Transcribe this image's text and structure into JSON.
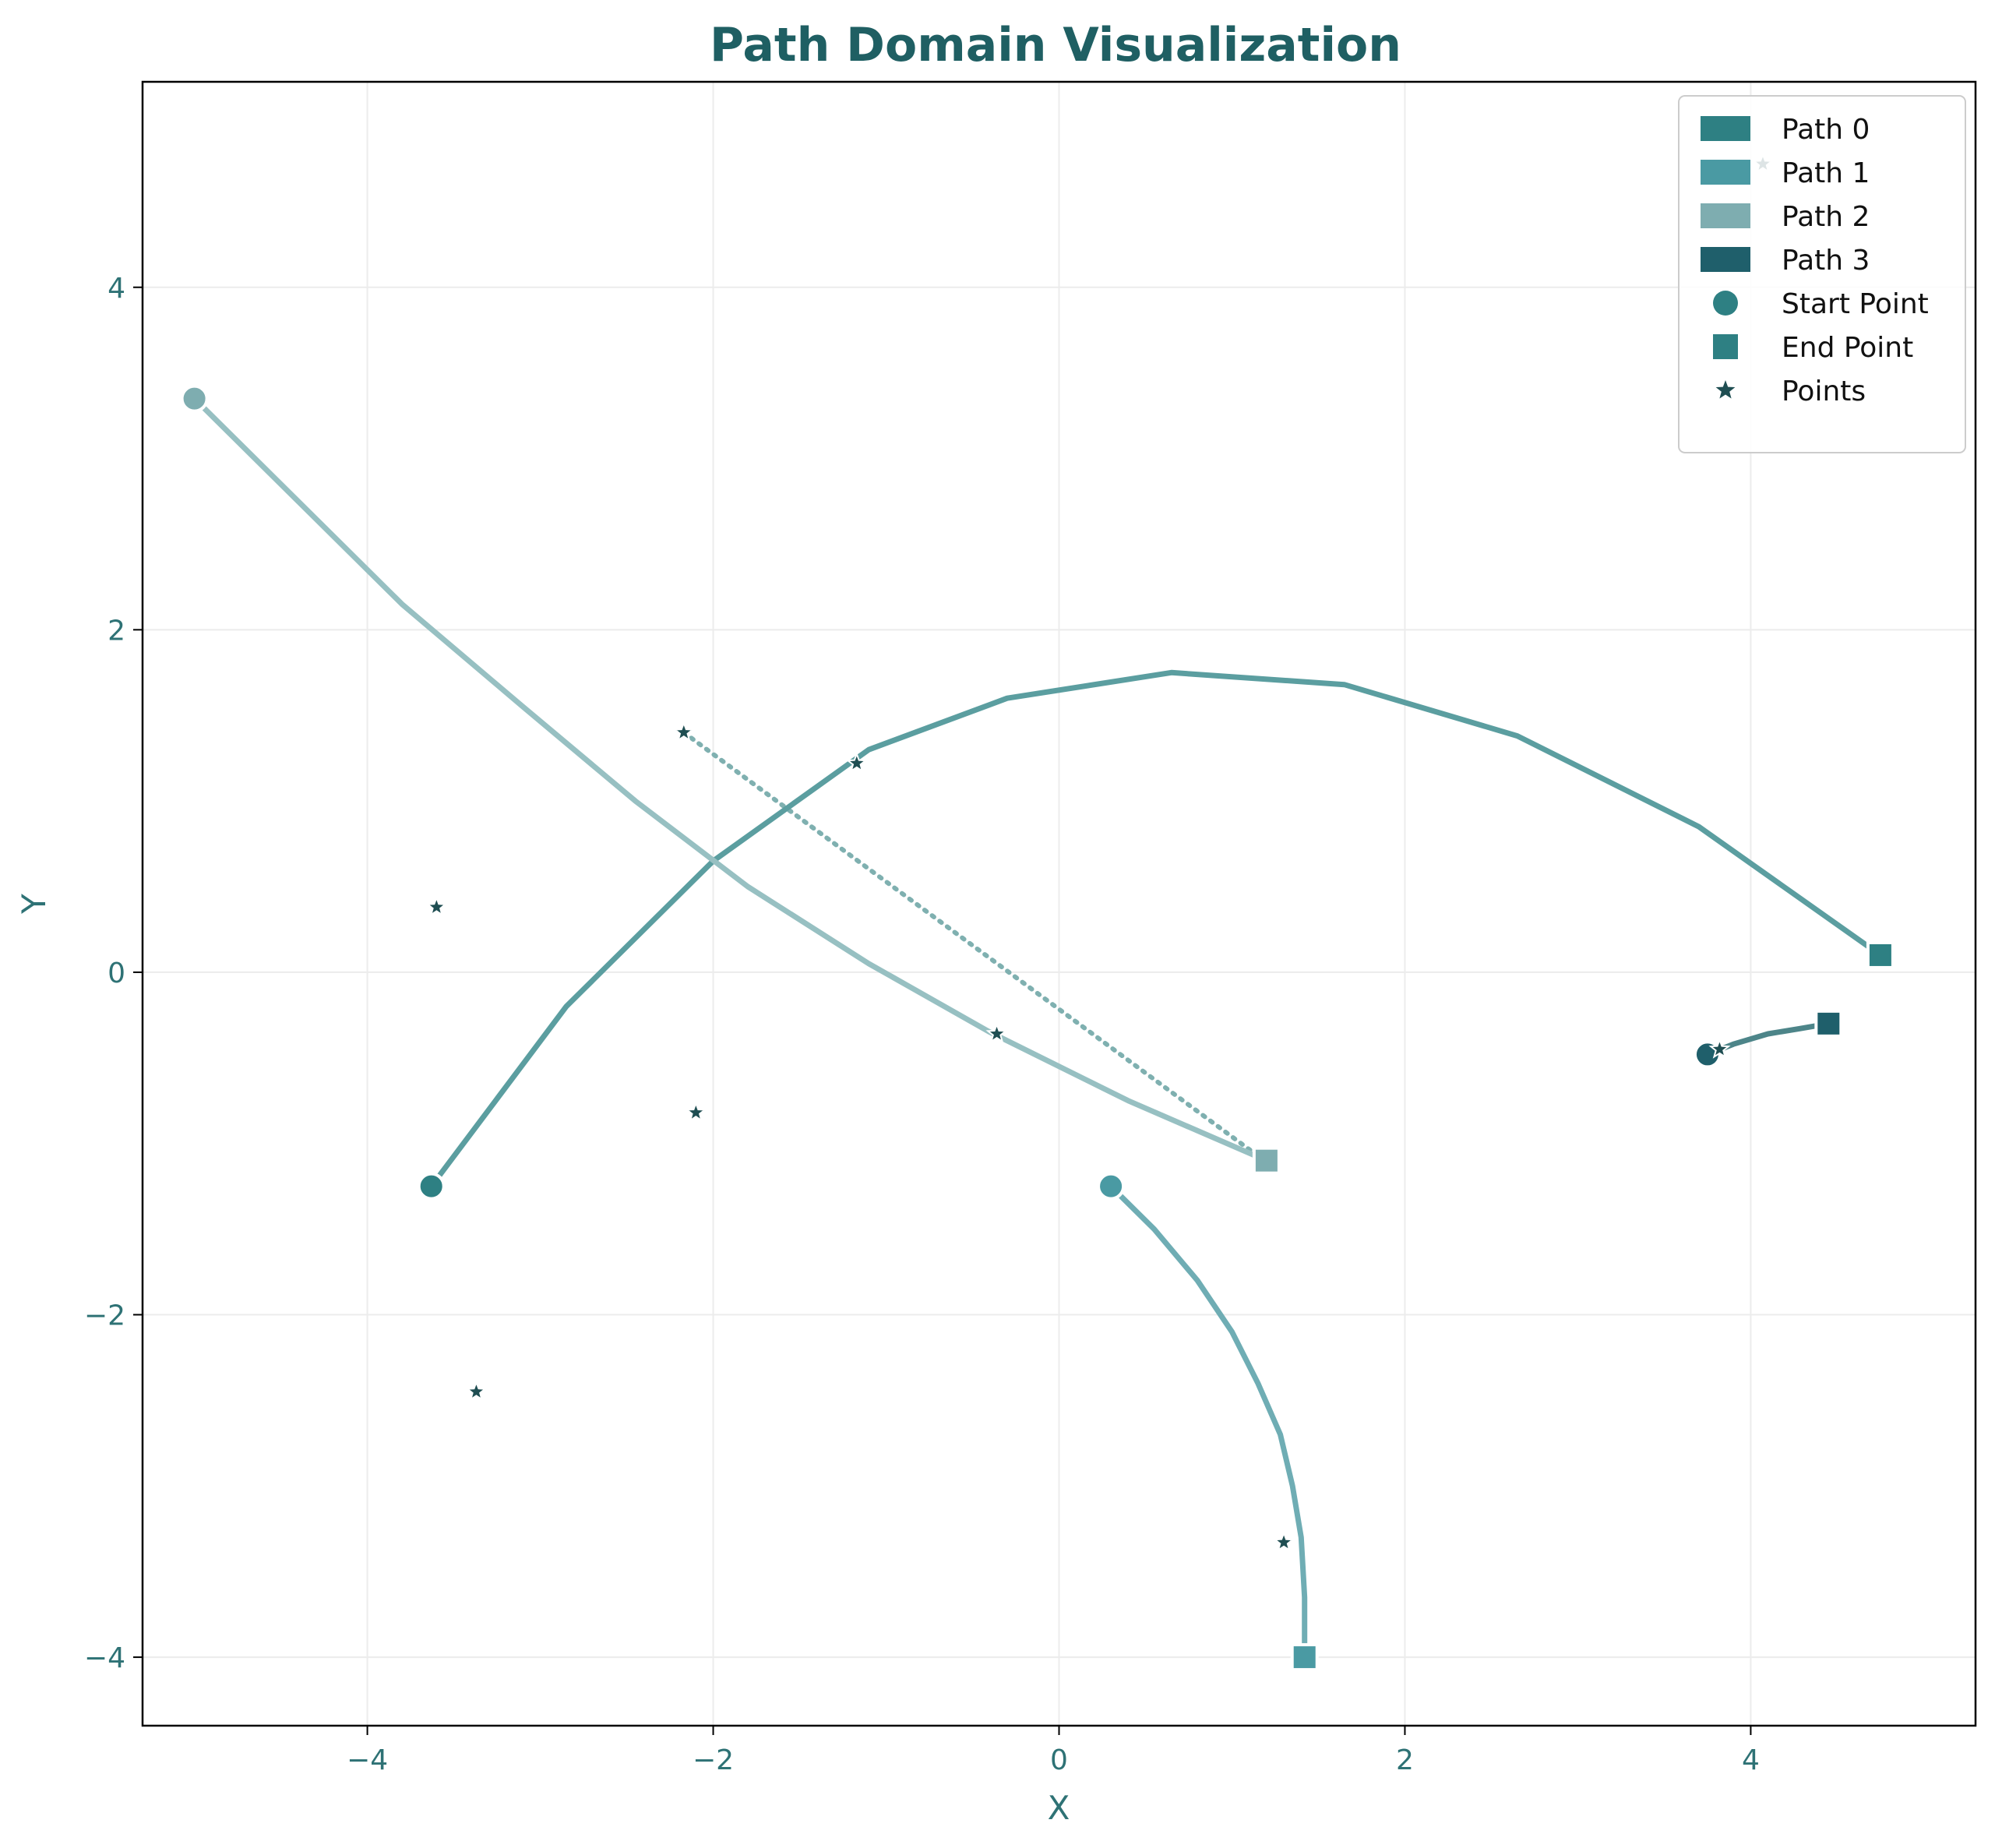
{
  "chart_data": {
    "type": "line",
    "title": "Path Domain Visualization",
    "xlabel": "X",
    "ylabel": "Y",
    "xlim": [
      -5.3,
      5.3
    ],
    "ylim": [
      -4.4,
      5.2
    ],
    "xticks": [
      -4,
      -2,
      0,
      2,
      4
    ],
    "yticks": [
      -4,
      -2,
      0,
      2,
      4
    ],
    "grid": true,
    "legend_position": "top-right",
    "colors": {
      "title": "#1f5f63",
      "axis_text": "#2e7275",
      "grid": "#ececec",
      "points": "#1f4e52"
    },
    "series": [
      {
        "name": "Path 0",
        "color": "#5b9ea0",
        "legend_color": "#2e8083",
        "points": [
          [
            -3.63,
            -1.25
          ],
          [
            -2.85,
            -0.2
          ],
          [
            -2.0,
            0.65
          ],
          [
            -1.1,
            1.3
          ],
          [
            -0.3,
            1.6
          ],
          [
            0.65,
            1.75
          ],
          [
            1.65,
            1.68
          ],
          [
            2.65,
            1.38
          ],
          [
            3.7,
            0.85
          ],
          [
            4.75,
            0.1
          ]
        ]
      },
      {
        "name": "Path 1",
        "color": "#6fadb4",
        "legend_color": "#4a9aa3",
        "points": [
          [
            0.3,
            -1.25
          ],
          [
            0.55,
            -1.5
          ],
          [
            0.8,
            -1.8
          ],
          [
            1.0,
            -2.1
          ],
          [
            1.15,
            -2.4
          ],
          [
            1.28,
            -2.7
          ],
          [
            1.35,
            -3.0
          ],
          [
            1.4,
            -3.3
          ],
          [
            1.42,
            -3.65
          ],
          [
            1.42,
            -4.0
          ]
        ]
      },
      {
        "name": "Path 2",
        "color": "#97c0c2",
        "legend_color": "#7eadb0",
        "points": [
          [
            -5.0,
            3.35
          ],
          [
            -4.4,
            2.75
          ],
          [
            -3.8,
            2.15
          ],
          [
            -3.1,
            1.55
          ],
          [
            -2.45,
            1.0
          ],
          [
            -1.8,
            0.5
          ],
          [
            -1.1,
            0.05
          ],
          [
            -0.4,
            -0.35
          ],
          [
            0.4,
            -0.75
          ],
          [
            1.2,
            -1.1
          ]
        ]
      },
      {
        "name": "Path 3",
        "color": "#4d8589",
        "legend_color": "#1f5f6b",
        "points": [
          [
            3.75,
            -0.48
          ],
          [
            3.9,
            -0.42
          ],
          [
            4.1,
            -0.36
          ],
          [
            4.28,
            -0.33
          ],
          [
            4.45,
            -0.3
          ]
        ]
      }
    ],
    "dotted_segment": {
      "color": "#7fb0b0",
      "from": [
        -2.17,
        1.4
      ],
      "to": [
        1.12,
        -1.05
      ]
    },
    "scatter_points": [
      [
        -3.6,
        0.38
      ],
      [
        -2.1,
        -0.82
      ],
      [
        -3.37,
        -2.45
      ],
      [
        -2.17,
        1.4
      ],
      [
        -1.17,
        1.22
      ],
      [
        -0.36,
        -0.36
      ],
      [
        1.3,
        -3.33
      ],
      [
        3.82,
        -0.45
      ],
      [
        4.07,
        4.72
      ]
    ],
    "legend": [
      {
        "label": "Path 0",
        "kind": "patch",
        "color": "#2e8083"
      },
      {
        "label": "Path 1",
        "kind": "patch",
        "color": "#4a9aa3"
      },
      {
        "label": "Path 2",
        "kind": "patch",
        "color": "#7eadb0"
      },
      {
        "label": "Path 3",
        "kind": "patch",
        "color": "#1f5f6b"
      },
      {
        "label": "Start Point",
        "kind": "circle",
        "color": "#2e8083"
      },
      {
        "label": "End Point",
        "kind": "square",
        "color": "#2e8083"
      },
      {
        "label": "Points",
        "kind": "star",
        "color": "#1f4e52"
      }
    ]
  }
}
